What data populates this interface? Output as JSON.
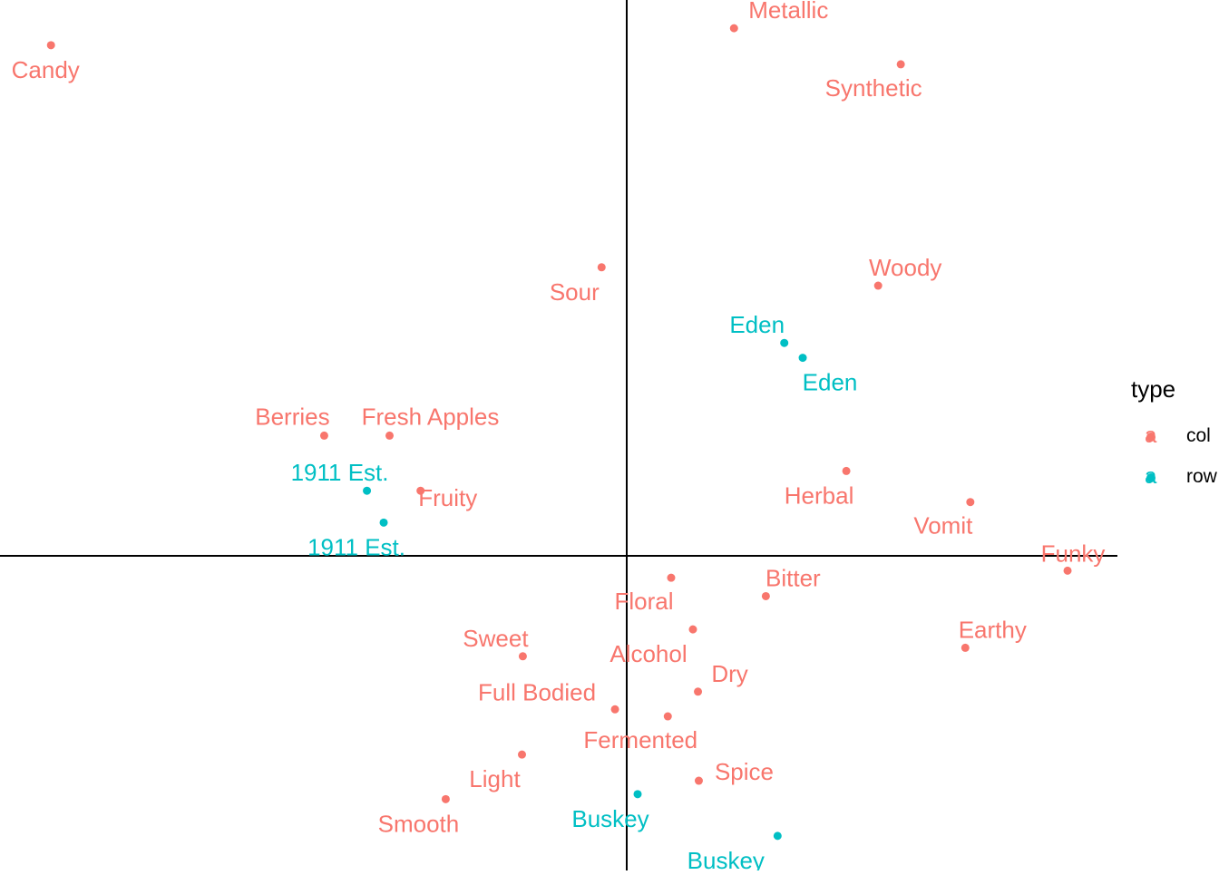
{
  "chart_data": {
    "type": "scatter",
    "title": "",
    "xlabel": "",
    "ylabel": "",
    "grid": false,
    "axes": "reference lines through origin",
    "xlim": [
      -0.7,
      0.6
    ],
    "ylim": [
      -0.45,
      0.8
    ],
    "legend": {
      "title": "type",
      "position": "right",
      "entries": [
        {
          "label": "col",
          "color": "#F8766D"
        },
        {
          "label": "row",
          "color": "#00BFC4"
        }
      ]
    },
    "series": [
      {
        "name": "col",
        "color": "#F8766D",
        "points": [
          {
            "label": "Candy",
            "x": -0.687,
            "y": 0.722
          },
          {
            "label": "Metallic",
            "x": 0.128,
            "y": 0.746
          },
          {
            "label": "Synthetic",
            "x": 0.327,
            "y": 0.695
          },
          {
            "label": "Sour",
            "x": -0.03,
            "y": 0.408
          },
          {
            "label": "Woody",
            "x": 0.3,
            "y": 0.382
          },
          {
            "label": "Berries",
            "x": -0.361,
            "y": 0.17
          },
          {
            "label": "Fresh Apples",
            "x": -0.283,
            "y": 0.17
          },
          {
            "label": "Fruity",
            "x": -0.246,
            "y": 0.092
          },
          {
            "label": "Herbal",
            "x": 0.262,
            "y": 0.12
          },
          {
            "label": "Vomit",
            "x": 0.41,
            "y": 0.076
          },
          {
            "label": "Funky",
            "x": 0.526,
            "y": -0.021
          },
          {
            "label": "Floral",
            "x": 0.053,
            "y": -0.031
          },
          {
            "label": "Bitter",
            "x": 0.166,
            "y": -0.057
          },
          {
            "label": "Alcohol",
            "x": 0.079,
            "y": -0.104
          },
          {
            "label": "Earthy",
            "x": 0.404,
            "y": -0.13
          },
          {
            "label": "Sweet",
            "x": -0.124,
            "y": -0.142
          },
          {
            "label": "Dry",
            "x": 0.085,
            "y": -0.192
          },
          {
            "label": "Full Bodied",
            "x": -0.014,
            "y": -0.217
          },
          {
            "label": "Fermented",
            "x": 0.049,
            "y": -0.227
          },
          {
            "label": "Light",
            "x": -0.125,
            "y": -0.281
          },
          {
            "label": "Spice",
            "x": 0.086,
            "y": -0.318
          },
          {
            "label": "Smooth",
            "x": -0.216,
            "y": -0.344
          }
        ]
      },
      {
        "name": "row",
        "color": "#00BFC4",
        "points": [
          {
            "label": "Eden",
            "x": 0.188,
            "y": 0.301
          },
          {
            "label": "Eden",
            "x": 0.21,
            "y": 0.28
          },
          {
            "label": "1911 Est.",
            "x": -0.31,
            "y": 0.092
          },
          {
            "label": "1911 Est.",
            "x": -0.29,
            "y": 0.047
          },
          {
            "label": "Buskey",
            "x": 0.013,
            "y": -0.337
          },
          {
            "label": "Buskey",
            "x": 0.18,
            "y": -0.396
          }
        ]
      }
    ]
  }
}
